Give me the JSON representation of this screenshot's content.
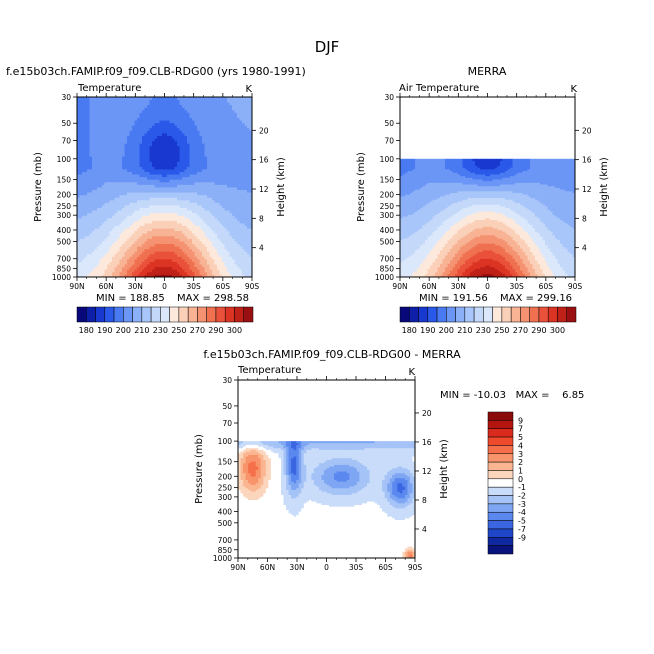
{
  "figure_title": "DJF",
  "panels": [
    {
      "main_title": "f.e15b03ch.FAMIP.f09_f09.CLB-RDG00 (yrs 1980-1991)",
      "left_label": "Temperature",
      "units": "K",
      "min_text": "MIN = 188.85",
      "max_text": "MAX = 298.58"
    },
    {
      "main_title": "MERRA",
      "left_label": "Air Temperature",
      "units": "K",
      "min_text": "MIN = 191.56",
      "max_text": "MAX = 299.16"
    },
    {
      "main_title": "f.e15b03ch.FAMIP.f09_f09.CLB-RDG00 - MERRA",
      "left_label": "Temperature",
      "units": "K",
      "minmax_text": "MIN = -10.03   MAX =    6.85"
    }
  ],
  "axes": {
    "ylabel": "Pressure (mb)",
    "y2label": "Height (km)",
    "pressure_ticks": [
      "30",
      "50",
      "70",
      "100",
      "150",
      "200",
      "250",
      "300",
      "400",
      "500",
      "700",
      "850",
      "1000"
    ],
    "height_ticks": [
      "20",
      "16",
      "12",
      "8",
      "4"
    ],
    "lat_ticks": [
      "90N",
      "60N",
      "30N",
      "0",
      "30S",
      "60S",
      "90S"
    ]
  },
  "colorbars": {
    "abs_labels": [
      "180",
      "190",
      "200",
      "210",
      "230",
      "250",
      "270",
      "290",
      "300"
    ],
    "abs_colors": [
      "#08087a",
      "#0c1fa6",
      "#1838d0",
      "#2a58e8",
      "#4a7af2",
      "#6b96f6",
      "#8cb0f8",
      "#a8c6f9",
      "#c4d9fa",
      "#dbe8fb",
      "#fde9dc",
      "#fbd0b8",
      "#f8b294",
      "#f49272",
      "#ef7150",
      "#e9513a",
      "#dc3424",
      "#bf2017",
      "#9a1012"
    ],
    "diff_labels": [
      "9",
      "7",
      "5",
      "4",
      "3",
      "2",
      "1",
      "0",
      "-1",
      "-2",
      "-3",
      "-4",
      "-5",
      "-7",
      "-9"
    ],
    "diff_colors": [
      "#8b0a0a",
      "#b5150f",
      "#d92a1d",
      "#ef4a2c",
      "#f5704a",
      "#f8946c",
      "#fab690",
      "#fbd5bc",
      "#ffffff",
      "#c9dcf9",
      "#a5c3f7",
      "#7fa6f3",
      "#5a88ee",
      "#3a66e2",
      "#1f45c8",
      "#0f28a0",
      "#07137a"
    ]
  },
  "chart_data": [
    {
      "type": "heatmap",
      "title": "f.e15b03ch.FAMIP.f09_f09.CLB-RDG00 (yrs 1980-1991)",
      "variable": "Temperature",
      "units": "K",
      "xlabel": "",
      "ylabel": "Pressure (mb)",
      "y2label": "Height (km)",
      "x_range": [
        "90N",
        "90S"
      ],
      "y_range_mb": [
        1000,
        30
      ],
      "y_scale": "log",
      "min": 188.85,
      "max": 298.58
    },
    {
      "type": "heatmap",
      "title": "MERRA",
      "variable": "Air Temperature",
      "units": "K",
      "xlabel": "",
      "ylabel": "Pressure (mb)",
      "y2label": "Height (km)",
      "x_range": [
        "90N",
        "90S"
      ],
      "y_range_mb": [
        1000,
        30
      ],
      "data_top_mb": 100,
      "y_scale": "log",
      "min": 191.56,
      "max": 299.16
    },
    {
      "type": "heatmap",
      "title": "f.e15b03ch.FAMIP.f09_f09.CLB-RDG00 - MERRA",
      "variable": "Temperature",
      "units": "K",
      "xlabel": "",
      "ylabel": "Pressure (mb)",
      "y2label": "Height (km)",
      "x_range": [
        "90N",
        "90S"
      ],
      "y_range_mb": [
        1000,
        30
      ],
      "data_top_mb": 100,
      "y_scale": "log",
      "min": -10.03,
      "max": 6.85
    }
  ]
}
